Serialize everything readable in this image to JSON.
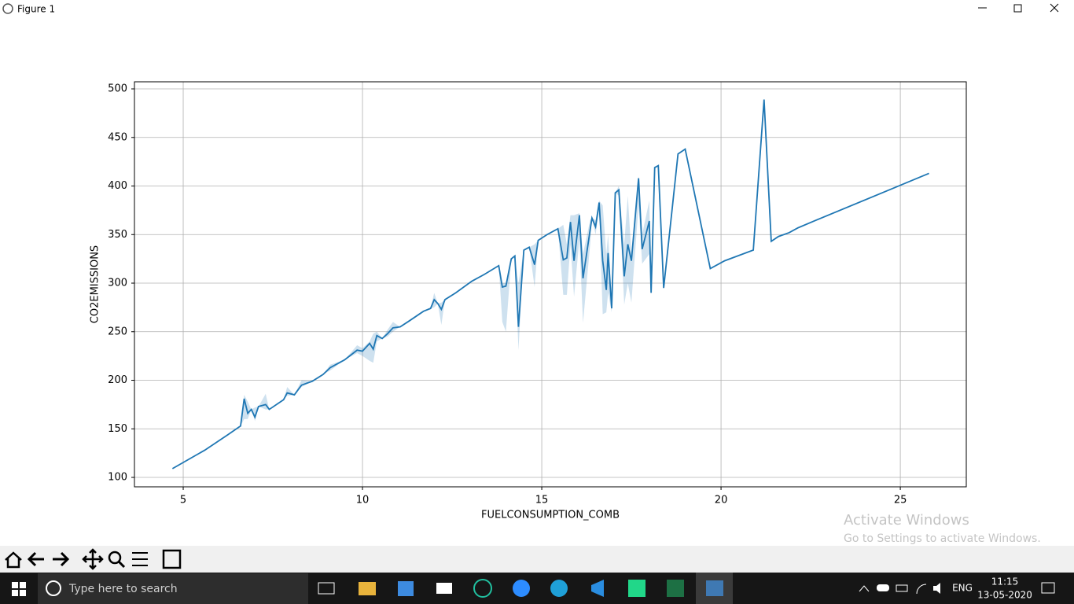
{
  "window": {
    "title": "Figure 1"
  },
  "chart_data": {
    "type": "line",
    "xlabel": "FUELCONSUMPTION_COMB",
    "ylabel": "CO2EMISSIONS",
    "xlim": [
      3.64,
      26.84
    ],
    "ylim": [
      90.3,
      507.3
    ],
    "xticks": [
      5,
      10,
      15,
      20,
      25
    ],
    "yticks": [
      100,
      150,
      200,
      250,
      300,
      350,
      400,
      450,
      500
    ],
    "grid": true,
    "series": [
      {
        "color": "#1f77b4",
        "x": [
          4.7,
          5.6,
          6.25,
          6.6,
          6.7,
          6.8,
          6.9,
          7.0,
          7.1,
          7.3,
          7.4,
          7.8,
          7.9,
          8.1,
          8.3,
          8.6,
          8.9,
          9.1,
          9.5,
          9.85,
          10.0,
          10.2,
          10.3,
          10.4,
          10.55,
          10.7,
          10.85,
          11.05,
          11.3,
          11.7,
          11.9,
          12.0,
          12.1,
          12.2,
          12.3,
          12.6,
          13.05,
          13.4,
          13.8,
          13.9,
          14.0,
          14.15,
          14.25,
          14.35,
          14.5,
          14.65,
          14.8,
          14.9,
          15.15,
          15.45,
          15.6,
          15.7,
          15.8,
          15.9,
          16.05,
          16.15,
          16.35,
          16.4,
          16.5,
          16.6,
          16.7,
          16.8,
          16.85,
          16.95,
          17.05,
          17.15,
          17.3,
          17.4,
          17.5,
          17.7,
          17.8,
          18.0,
          18.05,
          18.15,
          18.25,
          18.4,
          18.65,
          18.8,
          19.0,
          19.7,
          20.1,
          20.9,
          21.2,
          21.4,
          21.6,
          21.9,
          22.15,
          22.6,
          25.8
        ],
        "values": [
          109,
          128,
          144,
          153,
          181,
          166,
          170,
          162,
          173,
          175,
          170,
          180,
          187,
          185,
          195,
          199,
          206,
          213,
          221,
          231,
          230,
          238,
          232,
          246,
          243,
          248,
          254,
          255,
          261,
          271,
          274,
          283,
          279,
          273,
          283,
          290,
          302,
          309,
          318,
          296,
          297,
          325,
          328,
          255,
          334,
          337,
          319,
          344,
          350,
          356,
          324,
          326,
          363,
          323,
          370,
          305,
          355,
          367,
          358,
          383,
          323,
          293,
          331,
          274,
          393,
          396,
          307,
          340,
          323,
          408,
          335,
          364,
          290,
          419,
          421,
          295,
          381,
          433,
          438,
          315,
          323,
          334,
          489,
          343,
          348,
          352,
          357,
          364,
          413
        ],
        "lower": [
          109,
          128,
          144,
          153,
          160,
          160,
          170,
          158,
          173,
          170,
          170,
          180,
          184,
          185,
          193,
          199,
          206,
          210,
          221,
          228,
          225,
          220,
          218,
          240,
          243,
          245,
          250,
          255,
          261,
          271,
          274,
          275,
          279,
          257,
          283,
          290,
          302,
          309,
          318,
          260,
          250,
          325,
          328,
          231,
          334,
          337,
          296,
          344,
          350,
          356,
          288,
          288,
          340,
          286,
          345,
          259,
          340,
          367,
          350,
          375,
          268,
          270,
          290,
          270,
          393,
          390,
          278,
          300,
          280,
          380,
          320,
          330,
          290,
          419,
          421,
          295,
          381,
          433,
          438,
          315,
          323,
          334,
          489,
          343,
          348,
          352,
          357,
          364,
          413
        ],
        "upper": [
          109,
          128,
          144,
          153,
          185,
          178,
          170,
          172,
          173,
          186,
          170,
          180,
          193,
          185,
          200,
          199,
          206,
          216,
          221,
          236,
          233,
          240,
          248,
          250,
          243,
          252,
          260,
          255,
          261,
          271,
          274,
          290,
          279,
          280,
          283,
          290,
          302,
          309,
          318,
          300,
          300,
          325,
          328,
          300,
          334,
          337,
          340,
          344,
          350,
          356,
          360,
          340,
          370,
          370,
          372,
          330,
          365,
          367,
          365,
          385,
          380,
          330,
          350,
          290,
          393,
          400,
          340,
          390,
          330,
          410,
          350,
          385,
          290,
          419,
          421,
          295,
          381,
          433,
          438,
          315,
          323,
          334,
          489,
          343,
          348,
          352,
          357,
          364,
          413
        ]
      }
    ]
  },
  "watermark": {
    "title": "Activate Windows",
    "subtitle": "Go to Settings to activate Windows."
  },
  "taskbar": {
    "search": "Type here to search",
    "language": "ENG",
    "time": "11:15",
    "date": "13-05-2020"
  }
}
